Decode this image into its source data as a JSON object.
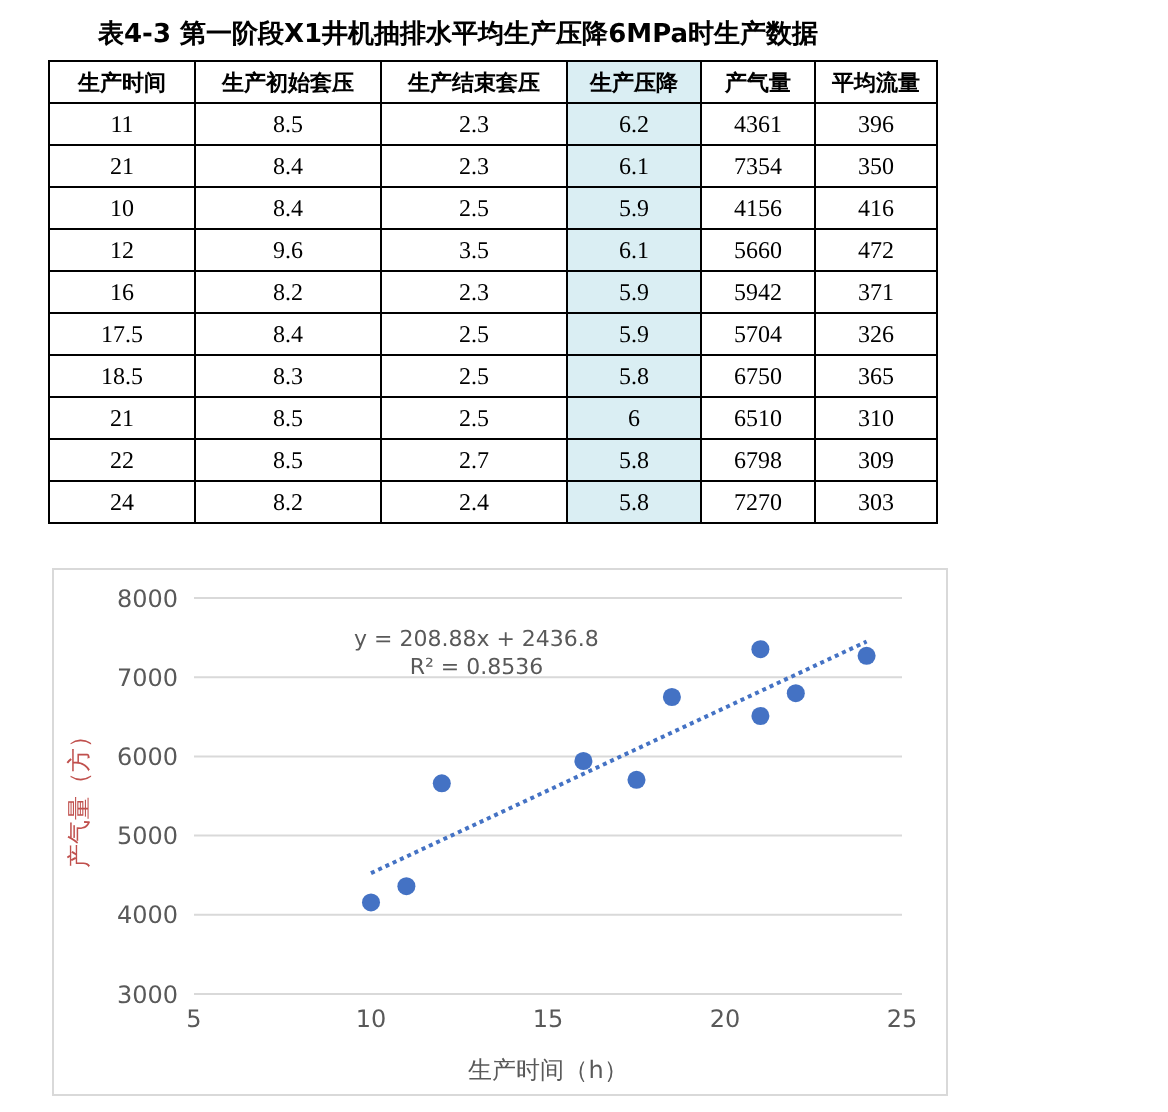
{
  "chart_data": [
    {
      "type": "other",
      "title": "表4-3 第一阶段X1井机抽排水平均生产压降6MPa时生产数据",
      "xlabel": "生产时间",
      "data_labels": true,
      "categories": [
        "11",
        "21",
        "10",
        "12",
        "16",
        "17.5",
        "18.5",
        "21",
        "22",
        "24"
      ],
      "series": [
        {
          "name": "生产初始套压",
          "color": "#ffffff",
          "values": [
            8.5,
            8.4,
            8.4,
            9.6,
            8.2,
            8.4,
            8.3,
            8.5,
            8.5,
            8.2
          ]
        },
        {
          "name": "生产结束套压",
          "color": "#ffffff",
          "values": [
            2.3,
            2.3,
            2.5,
            3.5,
            2.3,
            2.5,
            2.5,
            2.5,
            2.7,
            2.4
          ]
        },
        {
          "name": "生产压降",
          "color": "#daeef3",
          "values": [
            6.2,
            6.1,
            5.9,
            6.1,
            5.9,
            5.9,
            5.8,
            6,
            5.8,
            5.8
          ]
        },
        {
          "name": "产气量",
          "color": "#ffffff",
          "values": [
            4361,
            7354,
            4156,
            5660,
            5942,
            5704,
            6750,
            6510,
            6798,
            7270
          ]
        },
        {
          "name": "平均流量",
          "color": "#ffffff",
          "values": [
            396,
            350,
            416,
            472,
            371,
            326,
            365,
            310,
            309,
            303
          ]
        }
      ]
    },
    {
      "type": "scatter",
      "xlabel": "生产时间（h）",
      "ylabel": "产气量（方）",
      "xlim": [
        5,
        25
      ],
      "xticks": [
        5,
        10,
        15,
        20,
        25
      ],
      "ylim": [
        3000,
        8000
      ],
      "yticks": [
        3000,
        4000,
        5000,
        6000,
        7000,
        8000
      ],
      "grid": "y",
      "annotations": [
        "y = 208.88x + 2436.8",
        "R² = 0.8536"
      ],
      "series": [
        {
          "type": "scatter",
          "color": "#4472c4",
          "marker": "circle",
          "x": [
            11,
            21,
            10,
            12,
            16,
            17.5,
            18.5,
            21,
            22,
            24
          ],
          "values": [
            4361,
            7354,
            4156,
            5660,
            5942,
            5704,
            6750,
            6510,
            6798,
            7270
          ]
        },
        {
          "type": "line",
          "color": "#4472c4",
          "line_style": "dotted",
          "marker": "none",
          "x": [
            10,
            24
          ],
          "values": [
            4526,
            7450
          ]
        }
      ]
    }
  ]
}
